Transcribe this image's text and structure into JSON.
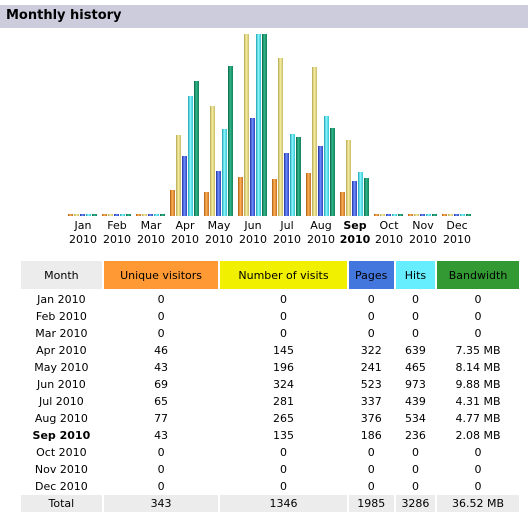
{
  "header": {
    "title": "Monthly history"
  },
  "table": {
    "columns": [
      "Month",
      "Unique visitors",
      "Number of visits",
      "Pages",
      "Hits",
      "Bandwidth"
    ],
    "rows": [
      {
        "month": "Jan 2010",
        "unique": "0",
        "visits": "0",
        "pages": "0",
        "hits": "0",
        "bandwidth": "0"
      },
      {
        "month": "Feb 2010",
        "unique": "0",
        "visits": "0",
        "pages": "0",
        "hits": "0",
        "bandwidth": "0"
      },
      {
        "month": "Mar 2010",
        "unique": "0",
        "visits": "0",
        "pages": "0",
        "hits": "0",
        "bandwidth": "0"
      },
      {
        "month": "Apr 2010",
        "unique": "46",
        "visits": "145",
        "pages": "322",
        "hits": "639",
        "bandwidth": "7.35 MB"
      },
      {
        "month": "May 2010",
        "unique": "43",
        "visits": "196",
        "pages": "241",
        "hits": "465",
        "bandwidth": "8.14 MB"
      },
      {
        "month": "Jun 2010",
        "unique": "69",
        "visits": "324",
        "pages": "523",
        "hits": "973",
        "bandwidth": "9.88 MB"
      },
      {
        "month": "Jul 2010",
        "unique": "65",
        "visits": "281",
        "pages": "337",
        "hits": "439",
        "bandwidth": "4.31 MB"
      },
      {
        "month": "Aug 2010",
        "unique": "77",
        "visits": "265",
        "pages": "376",
        "hits": "534",
        "bandwidth": "4.77 MB"
      },
      {
        "month": "Sep 2010",
        "unique": "43",
        "visits": "135",
        "pages": "186",
        "hits": "236",
        "bandwidth": "2.08 MB",
        "current": true
      },
      {
        "month": "Oct 2010",
        "unique": "0",
        "visits": "0",
        "pages": "0",
        "hits": "0",
        "bandwidth": "0"
      },
      {
        "month": "Nov 2010",
        "unique": "0",
        "visits": "0",
        "pages": "0",
        "hits": "0",
        "bandwidth": "0"
      },
      {
        "month": "Dec 2010",
        "unique": "0",
        "visits": "0",
        "pages": "0",
        "hits": "0",
        "bandwidth": "0"
      }
    ],
    "total": {
      "label": "Total",
      "unique": "343",
      "visits": "1346",
      "pages": "1985",
      "hits": "3286",
      "bandwidth": "36.52 MB"
    }
  },
  "chart_data": {
    "type": "bar",
    "categories": [
      "Jan 2010",
      "Feb 2010",
      "Mar 2010",
      "Apr 2010",
      "May 2010",
      "Jun 2010",
      "Jul 2010",
      "Aug 2010",
      "Sep 2010",
      "Oct 2010",
      "Nov 2010",
      "Dec 2010"
    ],
    "tick_labels": [
      [
        "Jan",
        "2010"
      ],
      [
        "Feb",
        "2010"
      ],
      [
        "Mar",
        "2010"
      ],
      [
        "Apr",
        "2010"
      ],
      [
        "May",
        "2010"
      ],
      [
        "Jun",
        "2010"
      ],
      [
        "Jul",
        "2010"
      ],
      [
        "Aug",
        "2010"
      ],
      [
        "Sep",
        "2010"
      ],
      [
        "Oct",
        "2010"
      ],
      [
        "Nov",
        "2010"
      ],
      [
        "Dec",
        "2010"
      ]
    ],
    "highlight_category": "Sep 2010",
    "series": [
      {
        "name": "Unique visitors",
        "values": [
          0,
          0,
          0,
          46,
          43,
          69,
          65,
          77,
          43,
          0,
          0,
          0
        ]
      },
      {
        "name": "Number of visits",
        "values": [
          0,
          0,
          0,
          145,
          196,
          324,
          281,
          265,
          135,
          0,
          0,
          0
        ]
      },
      {
        "name": "Pages",
        "values": [
          0,
          0,
          0,
          322,
          241,
          523,
          337,
          376,
          186,
          0,
          0,
          0
        ]
      },
      {
        "name": "Hits",
        "values": [
          0,
          0,
          0,
          639,
          465,
          973,
          439,
          534,
          236,
          0,
          0,
          0
        ]
      },
      {
        "name": "Bandwidth (MB)",
        "values": [
          0,
          0,
          0,
          7.35,
          8.14,
          9.88,
          4.31,
          4.77,
          2.08,
          0,
          0,
          0
        ]
      }
    ],
    "legend": "none",
    "grid": false,
    "colors": {
      "Unique visitors": "#ff9933",
      "Number of visits": "#f0f000",
      "Pages": "#4477dd",
      "Hits": "#66eeff",
      "Bandwidth": "#339933"
    }
  }
}
